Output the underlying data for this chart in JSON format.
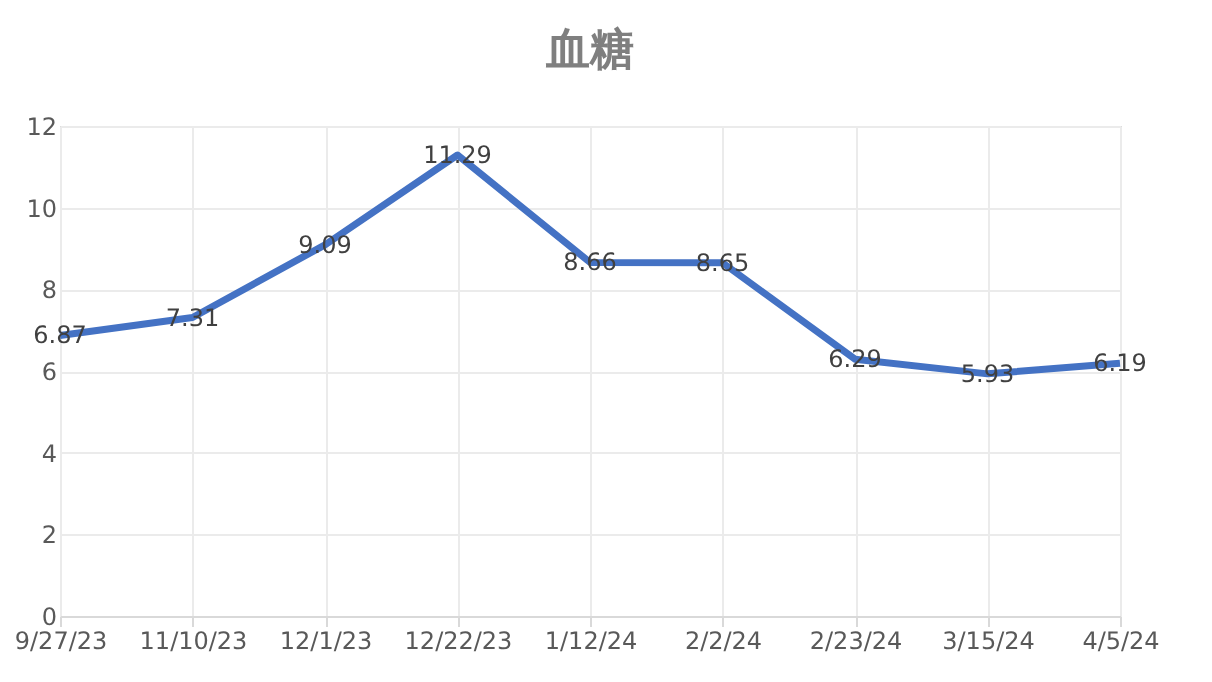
{
  "chart_data": {
    "type": "line",
    "title": "血糖",
    "categories": [
      "9/27/23",
      "11/10/23",
      "12/1/23",
      "12/22/23",
      "1/12/24",
      "2/2/24",
      "2/23/24",
      "3/15/24",
      "4/5/24"
    ],
    "series": [
      {
        "color": "#4472c4",
        "values": [
          6.87,
          7.31,
          9.09,
          11.29,
          8.66,
          8.65,
          6.29,
          5.93,
          6.19
        ]
      }
    ],
    "ylim": [
      0,
      12
    ],
    "yticks": [
      0,
      2,
      4,
      6,
      8,
      10,
      12
    ],
    "grid": true,
    "data_labels": true,
    "marker": "none",
    "line_style": "solid"
  }
}
